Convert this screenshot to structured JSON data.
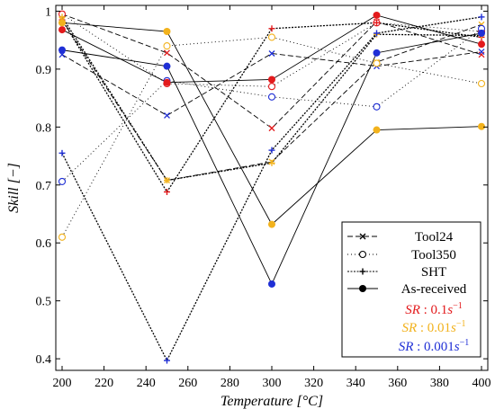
{
  "chart_data": {
    "type": "line",
    "xlabel": "Temperature [°C]",
    "ylabel": "Skill [−]",
    "xlim": [
      197,
      403
    ],
    "ylim": [
      0.38,
      1.01
    ],
    "xticks": [
      200,
      220,
      240,
      260,
      280,
      300,
      320,
      340,
      360,
      380,
      400
    ],
    "yticks": [
      0.4,
      0.5,
      0.6,
      0.7,
      0.8,
      0.9,
      1
    ],
    "x": [
      200,
      250,
      300,
      350,
      400
    ],
    "strain_rate_colors": {
      "SR: 0.1s^-1": "#e31a1c",
      "SR: 0.01s^-1": "#f2b21c",
      "SR: 0.001s^-1": "#1f2fd6"
    },
    "series": [
      {
        "name": "Tool24",
        "strain_rate": "0.1",
        "values": [
          0.995,
          0.928,
          0.798,
          0.982,
          0.925
        ]
      },
      {
        "name": "Tool24",
        "strain_rate": "0.01",
        "values": [
          0.985,
          0.708,
          0.74,
          0.912,
          0.977
        ]
      },
      {
        "name": "Tool24",
        "strain_rate": "0.001",
        "values": [
          0.925,
          0.82,
          0.927,
          0.905,
          0.93
        ]
      },
      {
        "name": "Tool350",
        "strain_rate": "0.1",
        "values": [
          0.995,
          0.875,
          0.87,
          0.98,
          0.965
        ]
      },
      {
        "name": "Tool350",
        "strain_rate": "0.01",
        "values": [
          0.61,
          0.94,
          0.955,
          0.91,
          0.875
        ]
      },
      {
        "name": "Tool350",
        "strain_rate": "0.001",
        "values": [
          0.706,
          0.88,
          0.852,
          0.835,
          0.97
        ]
      },
      {
        "name": "SHT",
        "strain_rate": "0.1",
        "values": [
          0.985,
          0.688,
          0.97,
          0.98,
          0.955
        ]
      },
      {
        "name": "SHT",
        "strain_rate": "0.01",
        "values": [
          0.99,
          0.708,
          0.738,
          0.96,
          0.958
        ]
      },
      {
        "name": "SHT",
        "strain_rate": "0.001",
        "values": [
          0.755,
          0.397,
          0.76,
          0.962,
          0.99
        ]
      },
      {
        "name": "As-received",
        "strain_rate": "0.1",
        "values": [
          0.968,
          0.877,
          0.882,
          0.993,
          0.943
        ]
      },
      {
        "name": "As-received",
        "strain_rate": "0.01",
        "values": [
          0.98,
          0.965,
          0.632,
          0.795,
          0.801
        ]
      },
      {
        "name": "As-received",
        "strain_rate": "0.001",
        "values": [
          0.933,
          0.905,
          0.529,
          0.928,
          0.962
        ]
      }
    ],
    "legend": {
      "placement": "bottom-right",
      "entries": [
        {
          "label": "Tool24",
          "style": "dashed-x"
        },
        {
          "label": "Tool350",
          "style": "dotted-circle"
        },
        {
          "label": "SHT",
          "style": "densely-dotted-plus"
        },
        {
          "label": "As-received",
          "style": "solid-dot"
        }
      ],
      "colored_entries": [
        {
          "prefix": "SR",
          "sep": " : ",
          "value": "0.1",
          "unit": "s",
          "exp": "−1",
          "color": "#e31a1c"
        },
        {
          "prefix": "SR",
          "sep": " : ",
          "value": "0.01",
          "unit": "s",
          "exp": "−1",
          "color": "#f2b21c"
        },
        {
          "prefix": "SR",
          "sep": " : ",
          "value": "0.001",
          "unit": "s",
          "exp": "−1",
          "color": "#1f2fd6"
        }
      ]
    },
    "grid": false
  }
}
